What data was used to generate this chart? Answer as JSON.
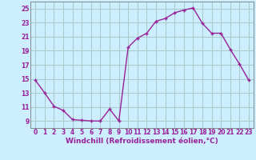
{
  "x": [
    0,
    1,
    2,
    3,
    4,
    5,
    6,
    7,
    8,
    9,
    10,
    11,
    12,
    13,
    14,
    15,
    16,
    17,
    18,
    19,
    20,
    21,
    22,
    23
  ],
  "y": [
    14.8,
    13.0,
    11.1,
    10.5,
    9.2,
    9.1,
    9.0,
    9.0,
    10.7,
    9.0,
    19.5,
    20.8,
    21.5,
    23.2,
    23.6,
    24.4,
    24.8,
    25.1,
    22.9,
    21.5,
    21.5,
    19.2,
    17.1,
    14.8
  ],
  "line_color": "#992299",
  "marker": "+",
  "xlabel": "Windchill (Refroidissement éolien,°C)",
  "xlim": [
    -0.5,
    23.5
  ],
  "ylim": [
    8.0,
    26.0
  ],
  "yticks": [
    9,
    11,
    13,
    15,
    17,
    19,
    21,
    23,
    25
  ],
  "xticks": [
    0,
    1,
    2,
    3,
    4,
    5,
    6,
    7,
    8,
    9,
    10,
    11,
    12,
    13,
    14,
    15,
    16,
    17,
    18,
    19,
    20,
    21,
    22,
    23
  ],
  "bg_color": "#cceeff",
  "grid_color": "#aacccc",
  "tick_fontsize": 5.5,
  "xlabel_fontsize": 6.5
}
